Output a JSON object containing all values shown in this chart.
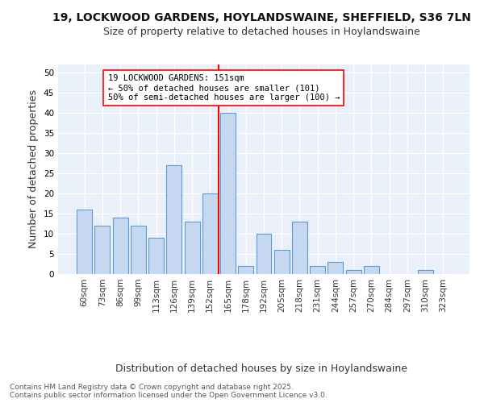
{
  "title1": "19, LOCKWOOD GARDENS, HOYLANDSWAINE, SHEFFIELD, S36 7LN",
  "title2": "Size of property relative to detached houses in Hoylandswaine",
  "xlabel": "Distribution of detached houses by size in Hoylandswaine",
  "ylabel": "Number of detached properties",
  "categories": [
    "60sqm",
    "73sqm",
    "86sqm",
    "99sqm",
    "113sqm",
    "126sqm",
    "139sqm",
    "152sqm",
    "165sqm",
    "178sqm",
    "192sqm",
    "205sqm",
    "218sqm",
    "231sqm",
    "244sqm",
    "257sqm",
    "270sqm",
    "284sqm",
    "297sqm",
    "310sqm",
    "323sqm"
  ],
  "values": [
    16,
    12,
    14,
    12,
    9,
    27,
    13,
    20,
    40,
    2,
    10,
    6,
    13,
    2,
    3,
    1,
    2,
    0,
    0,
    1,
    0
  ],
  "bar_color": "#c5d8f0",
  "bar_edge_color": "#5b9bd5",
  "vline_x": 7.5,
  "vline_color": "red",
  "annotation_text": "19 LOCKWOOD GARDENS: 151sqm\n← 50% of detached houses are smaller (101)\n50% of semi-detached houses are larger (100) →",
  "ylim": [
    0,
    52
  ],
  "yticks": [
    0,
    5,
    10,
    15,
    20,
    25,
    30,
    35,
    40,
    45,
    50
  ],
  "bg_color": "#eaf0fa",
  "footer1": "Contains HM Land Registry data © Crown copyright and database right 2025.",
  "footer2": "Contains public sector information licensed under the Open Government Licence v3.0.",
  "title1_fontsize": 10,
  "title2_fontsize": 9,
  "xlabel_fontsize": 9,
  "ylabel_fontsize": 9,
  "tick_fontsize": 7.5,
  "annot_fontsize": 7.5,
  "footer_fontsize": 6.5
}
